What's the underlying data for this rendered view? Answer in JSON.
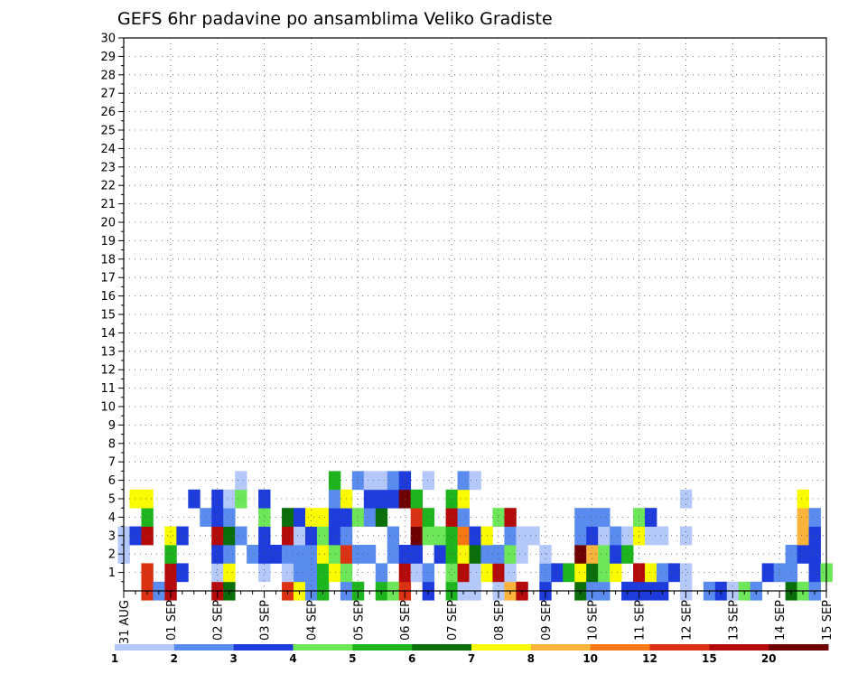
{
  "chart_data": {
    "type": "heatmap",
    "title": "GEFS 6hr padavine po ansamblima Veliko Gradiste",
    "xlabel": "",
    "ylabel": "",
    "x_ticks": [
      "31 AUG",
      "01 SEP",
      "02 SEP",
      "03 SEP",
      "04 SEP",
      "05 SEP",
      "06 SEP",
      "07 SEP",
      "08 SEP",
      "09 SEP",
      "10 SEP",
      "11 SEP",
      "12 SEP",
      "13 SEP",
      "14 SEP",
      "15 SEP"
    ],
    "y_ticks": [
      "1",
      "2",
      "3",
      "4",
      "5",
      "6",
      "7",
      "8",
      "9",
      "10",
      "11",
      "12",
      "13",
      "14",
      "15",
      "16",
      "17",
      "18",
      "19",
      "20",
      "21",
      "22",
      "23",
      "24",
      "25",
      "26",
      "27",
      "28",
      "29",
      "30"
    ],
    "x_steps": 60,
    "steps_per_day": 4,
    "y_range": [
      0,
      30
    ],
    "legend_labels": [
      "1",
      "2",
      "3",
      "4",
      "5",
      "6",
      "7",
      "8",
      "10",
      "12",
      "15",
      "20"
    ],
    "color_levels": [
      "#b4c8fa",
      "#5a8cf0",
      "#1e3cdc",
      "#6ee65a",
      "#1eb41e",
      "#0a6e0a",
      "#fafa00",
      "#fab43c",
      "#f57814",
      "#dc3214",
      "#b40a0a",
      "#6e0000"
    ],
    "grid": true,
    "cells": [
      [
        0,
        2,
        0
      ],
      [
        0,
        3,
        0
      ],
      [
        1,
        3,
        2
      ],
      [
        1,
        5,
        6
      ],
      [
        2,
        0,
        9
      ],
      [
        2,
        1,
        9
      ],
      [
        2,
        3,
        10
      ],
      [
        2,
        4,
        4
      ],
      [
        2,
        5,
        6
      ],
      [
        3,
        0,
        1
      ],
      [
        4,
        0,
        10
      ],
      [
        4,
        1,
        10
      ],
      [
        4,
        2,
        4
      ],
      [
        4,
        3,
        6
      ],
      [
        5,
        1,
        2
      ],
      [
        5,
        3,
        2
      ],
      [
        6,
        5,
        2
      ],
      [
        7,
        4,
        1
      ],
      [
        8,
        0,
        10
      ],
      [
        8,
        1,
        0
      ],
      [
        8,
        2,
        2
      ],
      [
        8,
        3,
        10
      ],
      [
        8,
        4,
        2
      ],
      [
        8,
        5,
        2
      ],
      [
        9,
        0,
        5
      ],
      [
        9,
        1,
        6
      ],
      [
        9,
        2,
        1
      ],
      [
        9,
        3,
        5
      ],
      [
        9,
        4,
        1
      ],
      [
        9,
        5,
        0
      ],
      [
        10,
        3,
        1
      ],
      [
        10,
        5,
        3
      ],
      [
        10,
        6,
        0
      ],
      [
        11,
        2,
        1
      ],
      [
        12,
        1,
        0
      ],
      [
        12,
        2,
        2
      ],
      [
        12,
        3,
        2
      ],
      [
        12,
        4,
        3
      ],
      [
        12,
        5,
        2
      ],
      [
        13,
        2,
        2
      ],
      [
        14,
        0,
        9
      ],
      [
        14,
        1,
        0
      ],
      [
        14,
        2,
        1
      ],
      [
        14,
        3,
        10
      ],
      [
        14,
        4,
        5
      ],
      [
        15,
        0,
        6
      ],
      [
        15,
        1,
        1
      ],
      [
        15,
        2,
        1
      ],
      [
        15,
        3,
        0
      ],
      [
        15,
        4,
        2
      ],
      [
        16,
        0,
        1
      ],
      [
        16,
        1,
        1
      ],
      [
        16,
        2,
        1
      ],
      [
        16,
        3,
        2
      ],
      [
        16,
        4,
        6
      ],
      [
        17,
        0,
        4
      ],
      [
        17,
        1,
        4
      ],
      [
        17,
        2,
        6
      ],
      [
        17,
        3,
        3
      ],
      [
        17,
        4,
        6
      ],
      [
        18,
        1,
        6
      ],
      [
        18,
        2,
        3
      ],
      [
        18,
        3,
        2
      ],
      [
        18,
        4,
        2
      ],
      [
        18,
        5,
        1
      ],
      [
        18,
        6,
        4
      ],
      [
        19,
        0,
        1
      ],
      [
        19,
        1,
        3
      ],
      [
        19,
        2,
        9
      ],
      [
        19,
        3,
        1
      ],
      [
        19,
        4,
        2
      ],
      [
        19,
        5,
        6
      ],
      [
        20,
        0,
        4
      ],
      [
        20,
        2,
        1
      ],
      [
        20,
        4,
        3
      ],
      [
        20,
        6,
        1
      ],
      [
        21,
        2,
        1
      ],
      [
        21,
        4,
        1
      ],
      [
        21,
        5,
        2
      ],
      [
        21,
        6,
        0
      ],
      [
        22,
        0,
        4
      ],
      [
        22,
        1,
        1
      ],
      [
        22,
        4,
        5
      ],
      [
        22,
        5,
        2
      ],
      [
        22,
        6,
        0
      ],
      [
        23,
        0,
        3
      ],
      [
        23,
        2,
        1
      ],
      [
        23,
        3,
        1
      ],
      [
        23,
        5,
        2
      ],
      [
        23,
        6,
        1
      ],
      [
        24,
        0,
        9
      ],
      [
        24,
        1,
        10
      ],
      [
        24,
        2,
        2
      ],
      [
        24,
        5,
        11
      ],
      [
        24,
        6,
        2
      ],
      [
        25,
        1,
        0
      ],
      [
        25,
        2,
        2
      ],
      [
        25,
        3,
        11
      ],
      [
        25,
        4,
        9
      ],
      [
        25,
        5,
        4
      ],
      [
        26,
        0,
        2
      ],
      [
        26,
        1,
        1
      ],
      [
        26,
        3,
        3
      ],
      [
        26,
        4,
        4
      ],
      [
        26,
        6,
        0
      ],
      [
        27,
        2,
        2
      ],
      [
        27,
        3,
        3
      ],
      [
        28,
        0,
        4
      ],
      [
        28,
        1,
        3
      ],
      [
        28,
        2,
        4
      ],
      [
        28,
        3,
        4
      ],
      [
        28,
        4,
        10
      ],
      [
        28,
        5,
        4
      ],
      [
        29,
        0,
        0
      ],
      [
        29,
        1,
        10
      ],
      [
        29,
        2,
        6
      ],
      [
        29,
        3,
        8
      ],
      [
        29,
        4,
        1
      ],
      [
        29,
        5,
        6
      ],
      [
        29,
        6,
        1
      ],
      [
        30,
        0,
        0
      ],
      [
        30,
        1,
        0
      ],
      [
        30,
        2,
        5
      ],
      [
        30,
        3,
        2
      ],
      [
        30,
        6,
        0
      ],
      [
        31,
        1,
        6
      ],
      [
        31,
        2,
        1
      ],
      [
        31,
        3,
        6
      ],
      [
        32,
        0,
        0
      ],
      [
        32,
        1,
        10
      ],
      [
        32,
        2,
        1
      ],
      [
        32,
        4,
        3
      ],
      [
        33,
        0,
        7
      ],
      [
        33,
        1,
        0
      ],
      [
        33,
        2,
        3
      ],
      [
        33,
        3,
        1
      ],
      [
        33,
        4,
        10
      ],
      [
        34,
        0,
        10
      ],
      [
        34,
        2,
        0
      ],
      [
        34,
        3,
        0
      ],
      [
        35,
        3,
        0
      ],
      [
        36,
        0,
        2
      ],
      [
        36,
        1,
        1
      ],
      [
        36,
        2,
        0
      ],
      [
        37,
        1,
        2
      ],
      [
        38,
        1,
        4
      ],
      [
        39,
        0,
        5
      ],
      [
        39,
        1,
        6
      ],
      [
        39,
        2,
        11
      ],
      [
        39,
        3,
        1
      ],
      [
        39,
        4,
        1
      ],
      [
        40,
        0,
        1
      ],
      [
        40,
        1,
        5
      ],
      [
        40,
        2,
        7
      ],
      [
        40,
        3,
        2
      ],
      [
        40,
        4,
        1
      ],
      [
        41,
        0,
        1
      ],
      [
        41,
        1,
        3
      ],
      [
        41,
        2,
        3
      ],
      [
        41,
        3,
        0
      ],
      [
        41,
        4,
        1
      ],
      [
        42,
        1,
        6
      ],
      [
        42,
        2,
        2
      ],
      [
        42,
        3,
        1
      ],
      [
        43,
        0,
        2
      ],
      [
        43,
        2,
        4
      ],
      [
        43,
        3,
        0
      ],
      [
        44,
        0,
        2
      ],
      [
        44,
        1,
        10
      ],
      [
        44,
        3,
        6
      ],
      [
        44,
        4,
        3
      ],
      [
        45,
        0,
        2
      ],
      [
        45,
        1,
        6
      ],
      [
        45,
        3,
        0
      ],
      [
        45,
        4,
        2
      ],
      [
        46,
        0,
        2
      ],
      [
        46,
        1,
        1
      ],
      [
        46,
        3,
        0
      ],
      [
        47,
        1,
        2
      ],
      [
        48,
        0,
        0
      ],
      [
        48,
        1,
        0
      ],
      [
        48,
        3,
        0
      ],
      [
        48,
        5,
        0
      ],
      [
        50,
        0,
        1
      ],
      [
        51,
        0,
        2
      ],
      [
        52,
        0,
        0
      ],
      [
        53,
        0,
        3
      ],
      [
        54,
        0,
        1
      ],
      [
        55,
        1,
        2
      ],
      [
        56,
        1,
        1
      ],
      [
        57,
        0,
        5
      ],
      [
        57,
        1,
        1
      ],
      [
        57,
        2,
        1
      ],
      [
        58,
        0,
        3
      ],
      [
        58,
        2,
        2
      ],
      [
        58,
        3,
        7
      ],
      [
        58,
        4,
        7
      ],
      [
        58,
        5,
        6
      ],
      [
        59,
        0,
        1
      ],
      [
        59,
        1,
        2
      ],
      [
        59,
        2,
        2
      ],
      [
        59,
        3,
        2
      ],
      [
        59,
        4,
        1
      ],
      [
        60,
        1,
        3
      ]
    ]
  },
  "colorbar": {
    "labels": [
      "1",
      "2",
      "3",
      "4",
      "5",
      "6",
      "7",
      "8",
      "10",
      "12",
      "15",
      "20"
    ]
  }
}
